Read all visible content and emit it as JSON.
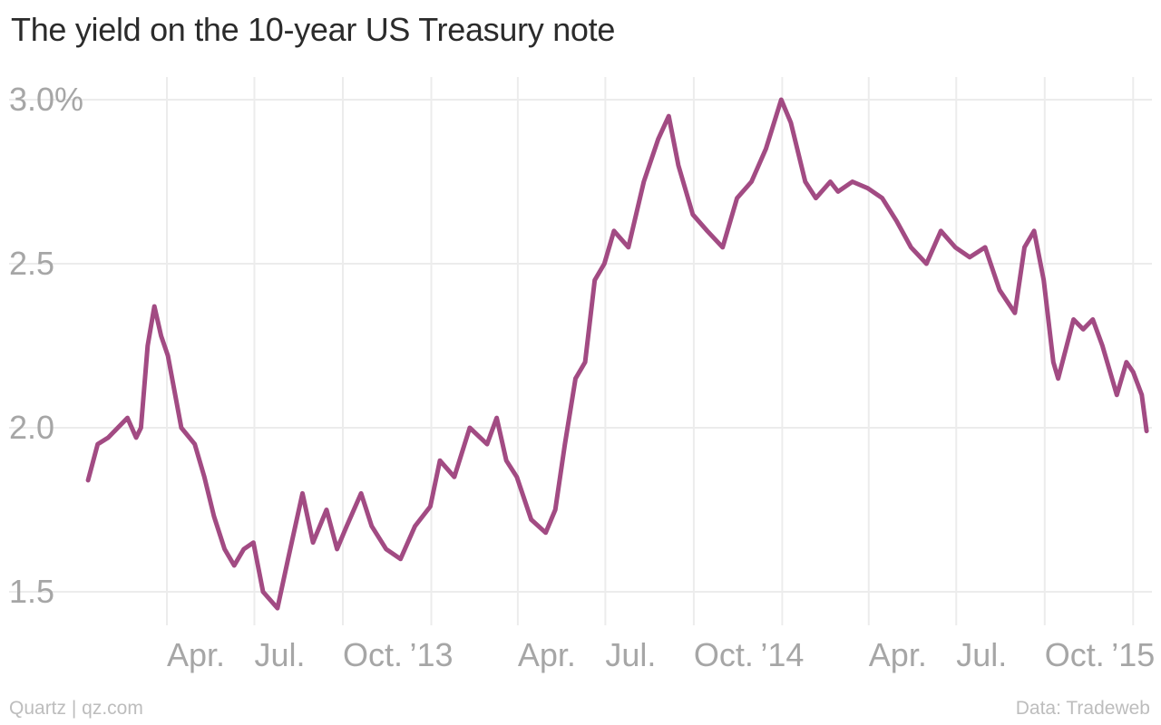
{
  "header": {
    "title": "The yield on the 10-year US Treasury note"
  },
  "footer": {
    "source_left": "Quartz | qz.com",
    "source_right": "Data: Tradeweb"
  },
  "colors": {
    "line": "#a24b83",
    "grid": "#ececec",
    "tick": "#a6a6a6"
  },
  "chart_data": {
    "type": "line",
    "title": "The yield on the 10-year US Treasury note",
    "xlabel": "",
    "ylabel": "",
    "ylim": [
      1.4,
      3.0
    ],
    "y_ticks": [
      {
        "value": 3.0,
        "label": "3.0%"
      },
      {
        "value": 2.5,
        "label": "2.5"
      },
      {
        "value": 2.0,
        "label": "2.0"
      },
      {
        "value": 1.5,
        "label": "1.5"
      }
    ],
    "x_ticks": [
      {
        "date": "2012-04-01",
        "label": "Apr."
      },
      {
        "date": "2012-07-01",
        "label": "Jul."
      },
      {
        "date": "2012-10-01",
        "label": "Oct."
      },
      {
        "date": "2013-01-01",
        "label": "’13"
      },
      {
        "date": "2013-04-01",
        "label": "Apr."
      },
      {
        "date": "2013-07-01",
        "label": "Jul."
      },
      {
        "date": "2013-10-01",
        "label": "Oct."
      },
      {
        "date": "2014-01-01",
        "label": "’14"
      },
      {
        "date": "2014-04-01",
        "label": "Apr."
      },
      {
        "date": "2014-07-01",
        "label": "Jul."
      },
      {
        "date": "2014-10-01",
        "label": "Oct."
      },
      {
        "date": "2015-01-01",
        "label": "’15"
      }
    ],
    "grid": true,
    "series": [
      {
        "x": [
          "2012-01-10",
          "2012-01-20",
          "2012-01-31",
          "2012-02-10",
          "2012-02-20",
          "2012-02-29",
          "2012-03-05",
          "2012-03-12",
          "2012-03-19",
          "2012-03-26",
          "2012-04-02",
          "2012-04-16",
          "2012-04-30",
          "2012-05-10",
          "2012-05-20",
          "2012-05-31",
          "2012-06-10",
          "2012-06-20",
          "2012-06-30",
          "2012-07-10",
          "2012-07-25",
          "2012-08-05",
          "2012-08-20",
          "2012-08-31",
          "2012-09-14",
          "2012-09-25",
          "2012-10-05",
          "2012-10-20",
          "2012-10-31",
          "2012-11-15",
          "2012-11-30",
          "2012-12-15",
          "2012-12-31",
          "2013-01-10",
          "2013-01-25",
          "2013-02-10",
          "2013-02-28",
          "2013-03-10",
          "2013-03-20",
          "2013-03-31",
          "2013-04-15",
          "2013-04-30",
          "2013-05-10",
          "2013-05-20",
          "2013-05-31",
          "2013-06-10",
          "2013-06-20",
          "2013-06-30",
          "2013-07-10",
          "2013-07-25",
          "2013-08-10",
          "2013-08-25",
          "2013-09-05",
          "2013-09-15",
          "2013-09-30",
          "2013-10-15",
          "2013-10-31",
          "2013-11-15",
          "2013-11-30",
          "2013-12-15",
          "2013-12-31",
          "2014-01-10",
          "2014-01-25",
          "2014-02-05",
          "2014-02-20",
          "2014-02-28",
          "2014-03-15",
          "2014-03-31",
          "2014-04-15",
          "2014-04-30",
          "2014-05-15",
          "2014-05-31",
          "2014-06-15",
          "2014-06-30",
          "2014-07-15",
          "2014-07-31",
          "2014-08-15",
          "2014-08-31",
          "2014-09-10",
          "2014-09-20",
          "2014-09-30",
          "2014-10-10",
          "2014-10-15",
          "2014-10-31",
          "2014-11-10",
          "2014-11-20",
          "2014-11-30",
          "2014-12-10",
          "2014-12-15",
          "2014-12-25",
          "2015-01-01",
          "2015-01-10",
          "2015-01-15"
        ],
        "y": [
          1.84,
          1.95,
          1.97,
          2.0,
          2.03,
          1.97,
          2.0,
          2.25,
          2.37,
          2.28,
          2.22,
          2.0,
          1.95,
          1.85,
          1.73,
          1.63,
          1.58,
          1.63,
          1.65,
          1.5,
          1.45,
          1.6,
          1.8,
          1.65,
          1.75,
          1.63,
          1.7,
          1.8,
          1.7,
          1.63,
          1.6,
          1.7,
          1.76,
          1.9,
          1.85,
          2.0,
          1.95,
          2.03,
          1.9,
          1.85,
          1.72,
          1.68,
          1.75,
          1.95,
          2.15,
          2.2,
          2.45,
          2.5,
          2.6,
          2.55,
          2.75,
          2.88,
          2.95,
          2.8,
          2.65,
          2.6,
          2.55,
          2.7,
          2.75,
          2.85,
          3.0,
          2.93,
          2.75,
          2.7,
          2.75,
          2.72,
          2.75,
          2.73,
          2.7,
          2.63,
          2.55,
          2.5,
          2.6,
          2.55,
          2.52,
          2.55,
          2.42,
          2.35,
          2.55,
          2.6,
          2.45,
          2.2,
          2.15,
          2.33,
          2.3,
          2.33,
          2.25,
          2.15,
          2.1,
          2.2,
          2.17,
          2.1,
          1.99
        ]
      }
    ]
  }
}
